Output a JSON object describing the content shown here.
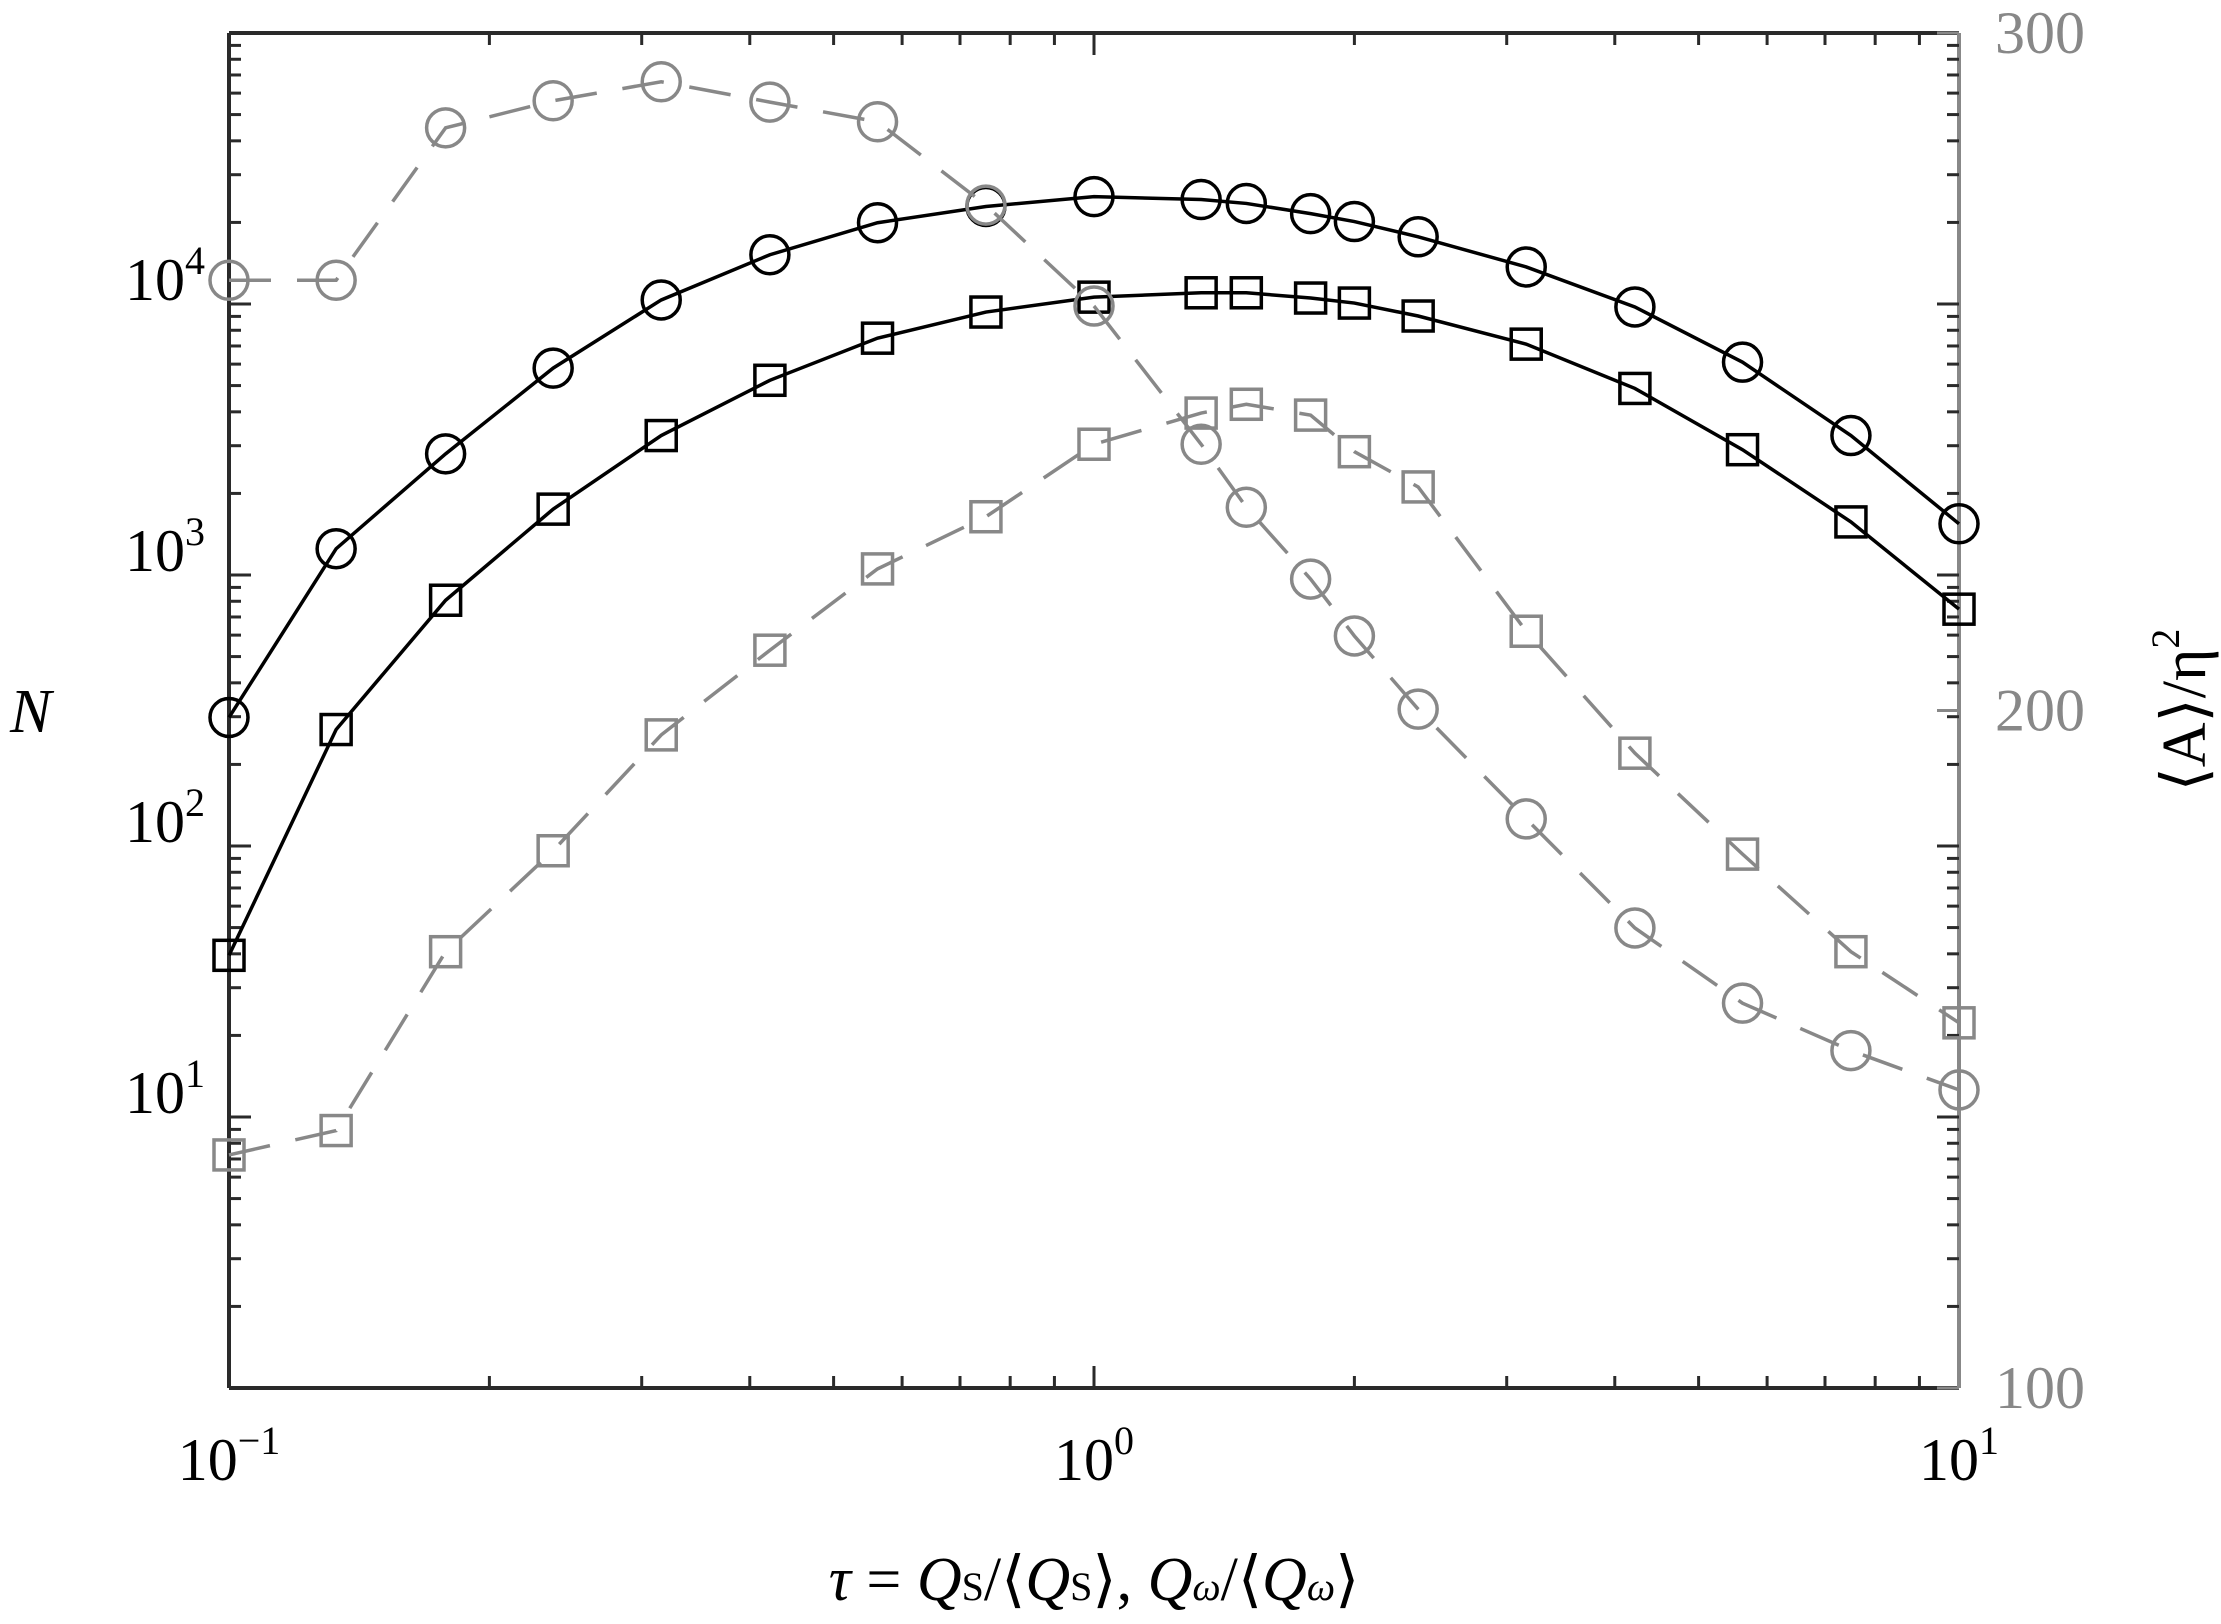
{
  "chart_data": {
    "type": "line",
    "title": "",
    "xlabel": "τ = Q_S/⟨Q_S⟩, Q_ω/⟨Q_ω⟩",
    "ylabel": "N",
    "ylabel_right": "⟨A⟩/η²",
    "xscale": "log",
    "yscale": "log",
    "yscale_right": "linear",
    "xlim": [
      0.1,
      10
    ],
    "ylim": [
      1,
      100000
    ],
    "ylim_right": [
      100,
      300
    ],
    "x_ticks": [
      {
        "value": 0.1,
        "base": "10",
        "exp": "−1"
      },
      {
        "value": 1,
        "base": "10",
        "exp": "0"
      },
      {
        "value": 10,
        "base": "10",
        "exp": "1"
      }
    ],
    "y_ticks": [
      {
        "value": 10,
        "base": "10",
        "exp": "1"
      },
      {
        "value": 100,
        "base": "10",
        "exp": "2"
      },
      {
        "value": 1000,
        "base": "10",
        "exp": "3"
      },
      {
        "value": 10000,
        "base": "10",
        "exp": "4"
      }
    ],
    "y_ticks_right": [
      100,
      200,
      300
    ],
    "grid": false,
    "legend": null,
    "x": [
      0.1,
      0.133,
      0.178,
      0.237,
      0.316,
      0.422,
      0.562,
      0.75,
      1.0,
      1.33,
      1.5,
      1.78,
      2.0,
      2.37,
      3.16,
      4.22,
      5.62,
      7.5,
      10
    ],
    "series": [
      {
        "name": "N (Q_S), circles",
        "axis": "left",
        "marker": "circle",
        "line": "solid",
        "color": "#000000",
        "values": [
          298,
          1250,
          2800,
          5800,
          10350,
          15200,
          19950,
          22900,
          24900,
          24300,
          23500,
          21550,
          20150,
          17700,
          13700,
          9750,
          6100,
          3270,
          1545
        ]
      },
      {
        "name": "N (Q_ω), squares",
        "axis": "left",
        "marker": "square",
        "line": "solid",
        "color": "#000000",
        "values": [
          39.5,
          269,
          807,
          1750,
          3270,
          5230,
          7480,
          9340,
          10600,
          11000,
          11000,
          10520,
          10080,
          9030,
          7110,
          4880,
          2900,
          1570,
          748
        ]
      },
      {
        "name": "⟨A⟩/η² (Q_S), circles",
        "axis": "right",
        "marker": "circle",
        "line": "dashed",
        "color": "#888888",
        "values": [
          263.5,
          263.5,
          286,
          290,
          292.8,
          289.8,
          286.9,
          274.6,
          259.7,
          239.3,
          230.0,
          219.4,
          211.0,
          200.2,
          184.0,
          167.9,
          156.8,
          149.8,
          144.0
        ]
      },
      {
        "name": "⟨A⟩/η² (Q_ω), squares",
        "axis": "right",
        "marker": "square",
        "line": "dashed",
        "color": "#888888",
        "values": [
          134.4,
          138.0,
          164.4,
          179.3,
          196.4,
          208.9,
          220.9,
          228.6,
          239.3,
          243.9,
          245.2,
          243.6,
          238.2,
          233.0,
          211.7,
          193.7,
          178.8,
          164.4,
          153.9
        ]
      }
    ]
  },
  "labels": {
    "y_left": "N",
    "y_right_main": "⟨A⟩/η",
    "y_right_sup": "2",
    "x_tau": "τ",
    "x_eq": " = ",
    "x_rest": "Q",
    "x_full": "τ = Q_S/⟨Q_S⟩, Q_ω/⟨Q_ω⟩"
  },
  "colors": {
    "primary": "#000000",
    "secondary": "#888888",
    "axis": "#2a2a2a"
  }
}
